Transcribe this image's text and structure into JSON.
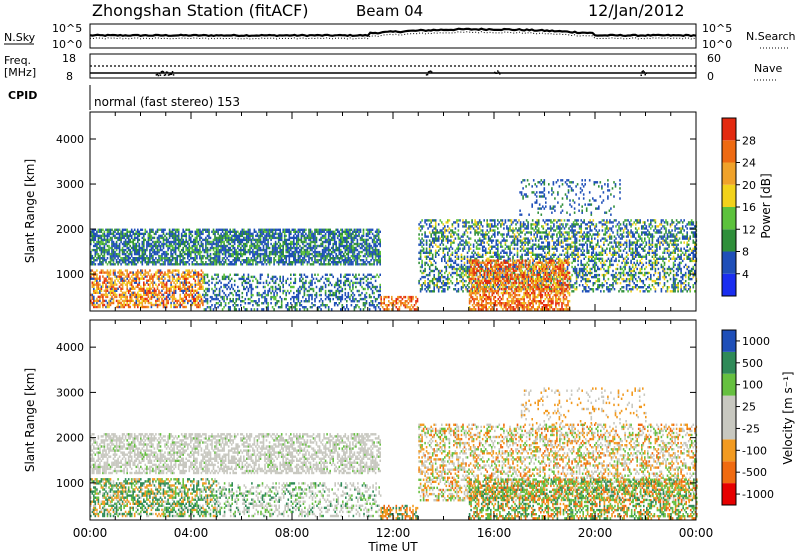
{
  "header": {
    "station": "Zhongshan Station (fitACF)",
    "beam": "Beam 04",
    "date": "12/Jan/2012"
  },
  "top_panels": {
    "nsky_label": "N.Sky",
    "nsearch_label": "N.Search",
    "ticks_top": "10^5",
    "ticks_bottom": "10^0",
    "freq_label_1": "Freq.",
    "freq_label_2": "[MHz]",
    "freq_top": "18",
    "freq_bottom": "8",
    "nave_label": "Nave",
    "nave_top": "60",
    "nave_bottom": "0",
    "cpid_label": "CPID",
    "cpid_value": "normal (fast stereo) 153"
  },
  "colors": {
    "power": [
      "#1a2ef0",
      "#1f4fb8",
      "#2f8f3a",
      "#5cc23c",
      "#f2d21b",
      "#f0a22a",
      "#ee6a12",
      "#e32a10"
    ],
    "velocity": [
      "#e60000",
      "#f06a10",
      "#f29a20",
      "#c8c8c0",
      "#c8c8c0",
      "#66c040",
      "#2f8a58",
      "#1f4fb8"
    ]
  },
  "chart_data": [
    {
      "type": "heatmap",
      "title": "",
      "xlabel": "",
      "ylabel": "Slant Range [km]",
      "colorbar_label": "Power [dB]",
      "colorbar_ticks": [
        "4",
        "8",
        "12",
        "16",
        "20",
        "24",
        "28"
      ],
      "x_ticks": [
        "00:00",
        "04:00",
        "08:00",
        "12:00",
        "16:00",
        "20:00",
        "00:00"
      ],
      "y_ticks": [
        "1000",
        "2000",
        "3000",
        "4000"
      ],
      "ylim": [
        180,
        4600
      ],
      "xlim_hours": [
        0,
        24
      ]
    },
    {
      "type": "heatmap",
      "title": "",
      "xlabel": "Time UT",
      "ylabel": "Slant Range [km]",
      "colorbar_label": "Velocity [m s⁻¹]",
      "colorbar_ticks": [
        "-1000",
        "-500",
        "-100",
        "-25",
        "25",
        "100",
        "500",
        "1000"
      ],
      "x_ticks": [
        "00:00",
        "04:00",
        "08:00",
        "12:00",
        "16:00",
        "20:00",
        "00:00"
      ],
      "y_ticks": [
        "1000",
        "2000",
        "3000",
        "4000"
      ],
      "ylim": [
        180,
        4600
      ],
      "xlim_hours": [
        0,
        24
      ]
    }
  ]
}
